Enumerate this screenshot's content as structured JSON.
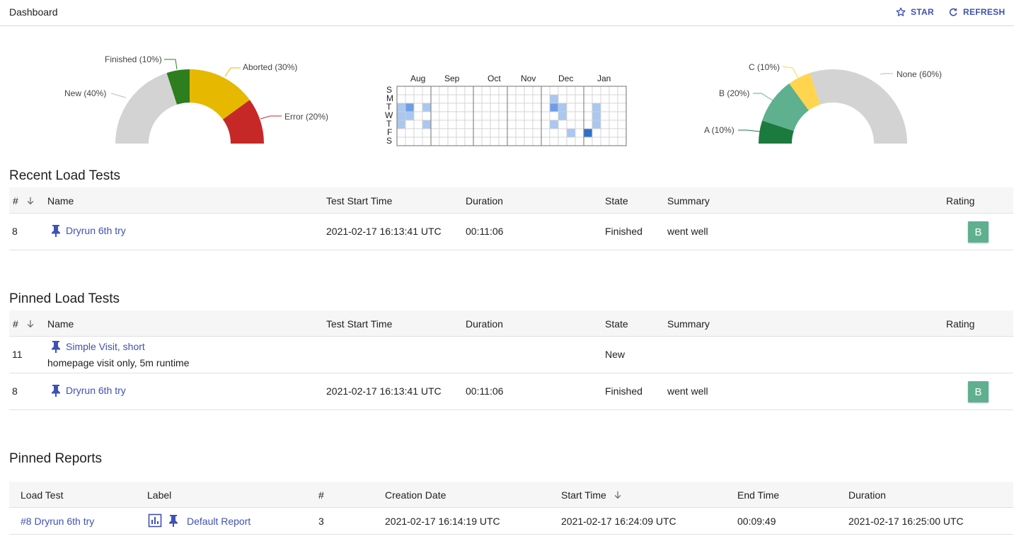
{
  "header": {
    "title": "Dashboard",
    "star_label": "STAR",
    "refresh_label": "REFRESH"
  },
  "colors": {
    "accent": "#3f51b5",
    "finished": "#2e7d1f",
    "aborted": "#e6b800",
    "error": "#c62828",
    "new": "#d3d3d3",
    "rating_a": "#1b7a3e",
    "rating_b": "#5fb08e",
    "rating_c": "#ffd54f"
  },
  "chart_data": [
    {
      "type": "pie",
      "variant": "half-donut",
      "categories": [
        "New (40%)",
        "Finished (10%)",
        "Aborted (30%)",
        "Error (20%)"
      ],
      "values": [
        40,
        10,
        30,
        20
      ],
      "colors": [
        "#d3d3d3",
        "#2e7d1f",
        "#e6b800",
        "#c62828"
      ]
    },
    {
      "type": "heatmap",
      "months": [
        "Aug",
        "Sep",
        "Oct",
        "Nov",
        "Dec",
        "Jan"
      ],
      "weekdays": [
        "S",
        "M",
        "T",
        "W",
        "T",
        "F",
        "S"
      ]
    },
    {
      "type": "pie",
      "variant": "half-donut",
      "categories": [
        "A (10%)",
        "B (20%)",
        "C (10%)",
        "None (60%)"
      ],
      "values": [
        10,
        20,
        10,
        60
      ],
      "colors": [
        "#1b7a3e",
        "#5fb08e",
        "#ffd54f",
        "#d3d3d3"
      ]
    }
  ],
  "recent": {
    "title": "Recent Load Tests",
    "columns": {
      "num": "#",
      "name": "Name",
      "start": "Test Start Time",
      "duration": "Duration",
      "state": "State",
      "summary": "Summary",
      "rating": "Rating"
    },
    "rows": [
      {
        "num": "8",
        "name": "Dryrun 6th try",
        "start": "2021-02-17  16:13:41 UTC",
        "duration": "00:11:06",
        "state": "Finished",
        "summary": "went well",
        "rating": "B"
      }
    ]
  },
  "pinned": {
    "title": "Pinned Load Tests",
    "columns": {
      "num": "#",
      "name": "Name",
      "start": "Test Start Time",
      "duration": "Duration",
      "state": "State",
      "summary": "Summary",
      "rating": "Rating"
    },
    "rows": [
      {
        "num": "11",
        "name": "Simple Visit, short",
        "description": "homepage visit only, 5m runtime",
        "state": "New"
      },
      {
        "num": "8",
        "name": "Dryrun 6th try",
        "start": "2021-02-17  16:13:41 UTC",
        "duration": "00:11:06",
        "state": "Finished",
        "summary": "went well",
        "rating": "B"
      }
    ]
  },
  "reports": {
    "title": "Pinned Reports",
    "columns": {
      "load_test": "Load Test",
      "label": "Label",
      "num": "#",
      "created": "Creation Date",
      "start": "Start Time",
      "end": "End Time",
      "duration": "Duration"
    },
    "rows": [
      {
        "load_test": "#8 Dryrun 6th try",
        "label": "Default Report",
        "num": "3",
        "created": "2021-02-17  16:14:19 UTC",
        "start": "2021-02-17  16:24:09 UTC",
        "end": "00:09:49",
        "duration": "2021-02-17  16:25:00 UTC"
      }
    ]
  }
}
